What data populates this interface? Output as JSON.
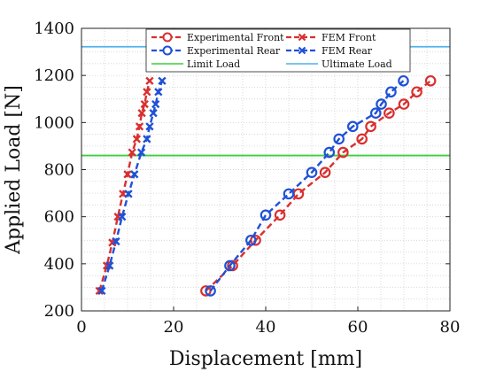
{
  "chart_data": {
    "type": "line",
    "xlabel": "Displacement [mm]",
    "ylabel": "Applied Load [N]",
    "xlim": [
      0,
      80
    ],
    "ylim": [
      200,
      1400
    ],
    "x_ticks": [
      0,
      20,
      40,
      60,
      80
    ],
    "y_ticks": [
      200,
      400,
      600,
      800,
      1000,
      1200,
      1400
    ],
    "grid": "minor-dotted",
    "legend_position": "top",
    "reference_lines": [
      {
        "name": "Limit Load",
        "y": 860,
        "color": "#3ccf3c"
      },
      {
        "name": "Ultimate Load",
        "y": 1322,
        "color": "#4fb4ea"
      }
    ],
    "series": [
      {
        "name": "Experimental Front",
        "color": "#d92f2f",
        "marker": "circle",
        "x": [
          27.0,
          32.8,
          37.8,
          43.1,
          47.1,
          52.9,
          56.8,
          60.9,
          62.8,
          66.8,
          70.0,
          72.8,
          75.8
        ],
        "y": [
          285,
          392,
          500,
          607,
          697,
          788,
          873,
          930,
          983,
          1040,
          1078,
          1130,
          1177
        ]
      },
      {
        "name": "Experimental Rear",
        "color": "#1f51d6",
        "marker": "circle",
        "x": [
          28.0,
          32.2,
          36.8,
          40.0,
          45.0,
          50.0,
          53.8,
          55.9,
          58.9,
          63.9,
          65.1,
          67.2,
          69.9
        ],
        "y": [
          285,
          392,
          500,
          607,
          697,
          788,
          873,
          930,
          983,
          1040,
          1078,
          1130,
          1177
        ]
      },
      {
        "name": "FEM Front",
        "color": "#d92f2f",
        "marker": "x",
        "x": [
          3.9,
          5.5,
          6.7,
          7.9,
          9.0,
          10.0,
          11.0,
          12.0,
          12.6,
          13.1,
          13.7,
          14.2,
          14.8
        ],
        "y": [
          285,
          392,
          490,
          600,
          697,
          780,
          873,
          930,
          983,
          1040,
          1078,
          1130,
          1177
        ]
      },
      {
        "name": "FEM Rear",
        "color": "#1f51d6",
        "marker": "x",
        "x": [
          4.4,
          6.1,
          7.5,
          8.8,
          10.2,
          11.5,
          13.0,
          14.2,
          14.8,
          15.6,
          16.1,
          16.7,
          17.5
        ],
        "y": [
          285,
          392,
          495,
          600,
          697,
          780,
          873,
          930,
          983,
          1040,
          1078,
          1130,
          1177
        ]
      }
    ],
    "legend_labels": {
      "experimental_front": "Experimental Front",
      "experimental_rear": "Experimental Rear",
      "limit_load": "Limit Load",
      "fem_front": "FEM Front",
      "fem_rear": "FEM Rear",
      "ultimate_load": "Ultimate Load"
    }
  }
}
